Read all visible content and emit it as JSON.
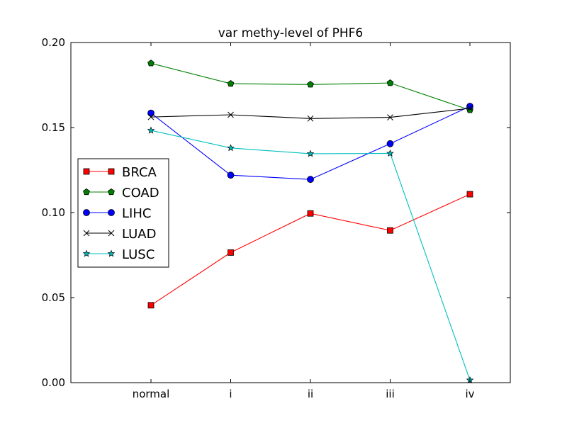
{
  "chart_data": {
    "type": "line",
    "title": "var methy-level of PHF6",
    "xlabel": "",
    "ylabel": "",
    "categories": [
      "normal",
      "i",
      "ii",
      "iii",
      "iv"
    ],
    "ylim": [
      0.0,
      0.2
    ],
    "yticks": [
      "0.00",
      "0.05",
      "0.10",
      "0.15",
      "0.20"
    ],
    "grid": false,
    "legend_position": "center-left",
    "series": [
      {
        "name": "BRCA",
        "color": "#ff0000",
        "marker": "square",
        "values": [
          0.0455,
          0.0765,
          0.0995,
          0.0895,
          0.1108
        ]
      },
      {
        "name": "COAD",
        "color": "#008000",
        "marker": "pentagon",
        "values": [
          0.1878,
          0.1758,
          0.1753,
          0.1762,
          0.1603
        ]
      },
      {
        "name": "LIHC",
        "color": "#0000ff",
        "marker": "circle",
        "values": [
          0.1585,
          0.122,
          0.1195,
          0.1405,
          0.1625
        ]
      },
      {
        "name": "LUAD",
        "color": "#000000",
        "marker": "x",
        "values": [
          0.1562,
          0.1575,
          0.1553,
          0.156,
          0.1613
        ]
      },
      {
        "name": "LUSC",
        "color": "#00bfbf",
        "marker": "star",
        "values": [
          0.1483,
          0.138,
          0.1346,
          0.1348,
          0.0015
        ]
      }
    ]
  }
}
